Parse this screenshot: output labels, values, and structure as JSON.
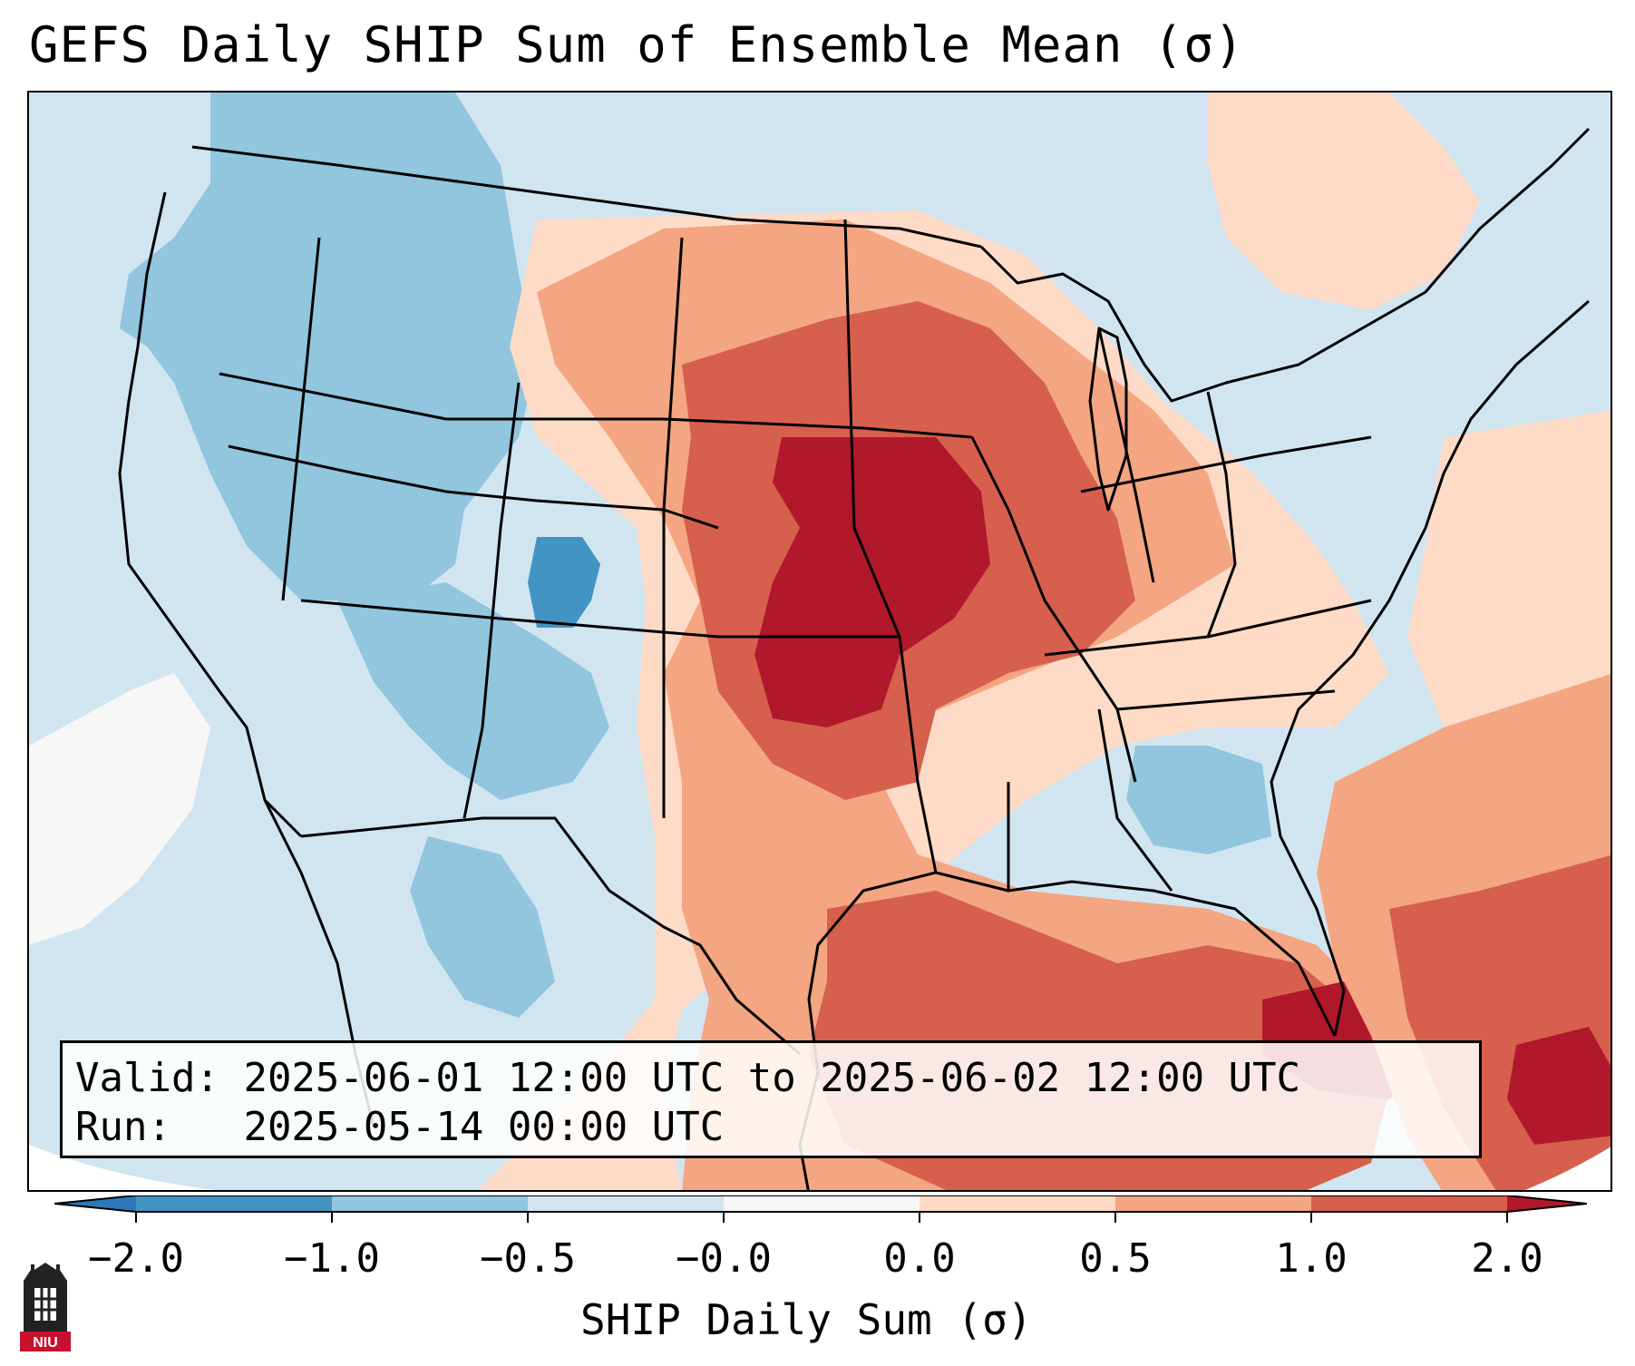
{
  "title": "GEFS Daily SHIP Sum of Ensemble Mean (σ)",
  "info": {
    "valid_prefix": "Valid:",
    "valid_value": "2025-06-01 12:00 UTC to 2025-06-02 12:00 UTC",
    "run_prefix": "Run:  ",
    "run_value": "2025-05-14 00:00 UTC"
  },
  "colorbar": {
    "label": "SHIP Daily Sum (σ)",
    "ticks": [
      "−2.0",
      "−1.0",
      "−0.5",
      "−0.0",
      "0.0",
      "0.5",
      "1.0",
      "2.0"
    ],
    "colors": {
      "under": "#2c78b8",
      "bin1": "#4393c3",
      "bin2": "#92c5de",
      "bin3": "#d1e5f0",
      "bin4": "#f7f7f7",
      "bin5": "#fddbc7",
      "bin6": "#f4a582",
      "bin7": "#d6604d",
      "over": "#b2182b"
    }
  },
  "logo_text": "NIU"
}
